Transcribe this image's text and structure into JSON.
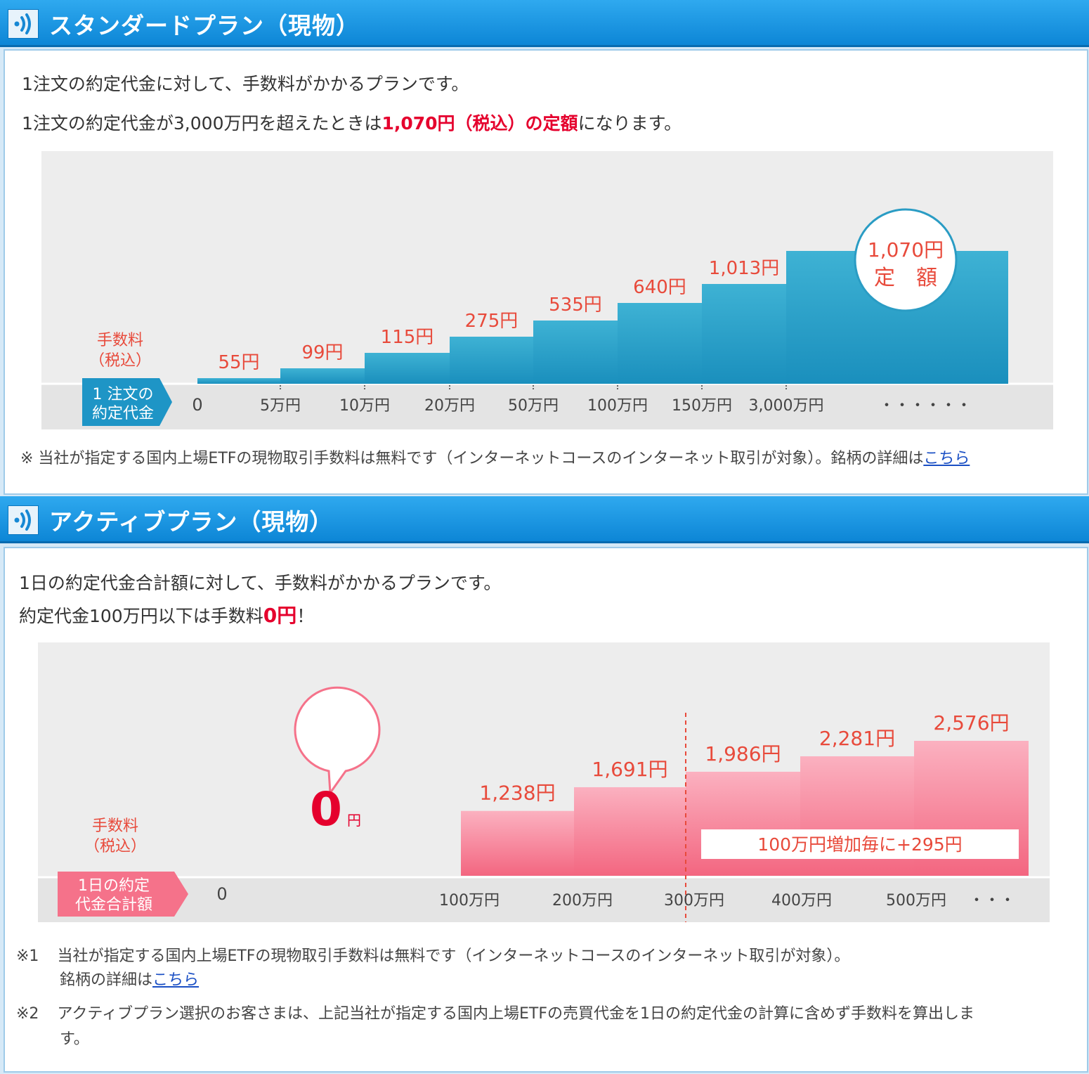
{
  "standard": {
    "title": "スタンダードプラン（現物）",
    "line1": "1注文の約定代金に対して、手数料がかかるプランです。",
    "line2_pre": "1注文の約定代金が3,000万円を超えたときは",
    "line2_emph": "1,070円（税込）の定額",
    "line2_post": "になります。",
    "chart": {
      "fee_label_line1": "手数料",
      "fee_label_line2": "（税込）",
      "axis_tag_line1": "1 注文の",
      "axis_tag_line2": "約定代金",
      "zero": "0",
      "dots": "・・・・・・",
      "badge_line1": "1,070円",
      "badge_line2": "定　額"
    },
    "note_pre": "※ 当社が指定する国内上場ETFの現物取引手数料は無料です（インターネットコースのインターネット取引が対象）。銘柄の詳細は",
    "note_link": "こちら"
  },
  "active": {
    "title": "アクティブプラン（現物）",
    "line1": "1日の約定代金合計額に対して、手数料がかかるプランです。",
    "line2_pre": "約定代金100万円以下は手数料",
    "line2_emph": "0円",
    "line2_post": "！",
    "chart": {
      "fee_label_line1": "手数料",
      "fee_label_line2": "（税込）",
      "axis_tag_line1": "1日の約定",
      "axis_tag_line2": "代金合計額",
      "zero": "0",
      "dots": "・・・",
      "zero_badge_num": "0",
      "zero_badge_unit": "円",
      "increment_note": "100万円増加毎に+295円"
    },
    "note1_mark": "※1",
    "note1_text": "当社が指定する国内上場ETFの現物取引手数料は無料です（インターネットコースのインターネット取引が対象）。",
    "note1_line2_pre": "銘柄の詳細は",
    "note1_link": "こちら",
    "note2_mark": "※2",
    "note2_text": "アクティブプラン選択のお客さまは、上記当社が指定する国内上場ETFの売買代金を1日の約定代金の計算に含めず手数料を算出しま",
    "note2_line2": "す。"
  },
  "chart_data": [
    {
      "type": "bar",
      "title": "スタンダードプラン（現物）",
      "ylabel": "手数料（税込）",
      "xlabel": "1注文の約定代金",
      "categories": [
        "0〜5万円",
        "5万円〜10万円",
        "10万円〜20万円",
        "20万円〜50万円",
        "50万円〜100万円",
        "100万円〜150万円",
        "150万円〜3,000万円",
        "3,000万円〜"
      ],
      "tick_labels": [
        "0",
        "5万円",
        "10万円",
        "20万円",
        "50万円",
        "100万円",
        "150万円",
        "3,000万円"
      ],
      "values": [
        55,
        99,
        115,
        275,
        535,
        640,
        1013,
        1070
      ],
      "value_labels": [
        "55円",
        "99円",
        "115円",
        "275円",
        "535円",
        "640円",
        "1,013円",
        "1,070円"
      ],
      "color": "#2a9cc4"
    },
    {
      "type": "bar",
      "title": "アクティブプラン（現物）",
      "ylabel": "手数料（税込）",
      "xlabel": "1日の約定代金合計額",
      "categories": [
        "0〜100万円",
        "100万円〜200万円",
        "200万円〜300万円",
        "300万円〜400万円",
        "400万円〜500万円",
        "500万円〜"
      ],
      "tick_labels": [
        "0",
        "100万円",
        "200万円",
        "300万円",
        "400万円",
        "500万円"
      ],
      "values": [
        0,
        1238,
        1691,
        1986,
        2281,
        2576
      ],
      "value_labels": [
        "0円",
        "1,238円",
        "1,691円",
        "1,986円",
        "2,281円",
        "2,576円"
      ],
      "color": "#f5728a"
    }
  ],
  "colors": {
    "header_blue": "#1a95e0",
    "bar_blue": "#2a9cc4",
    "bar_pink": "#f5728a",
    "label_red": "#e84a3b",
    "emph_red": "#e5002d"
  }
}
